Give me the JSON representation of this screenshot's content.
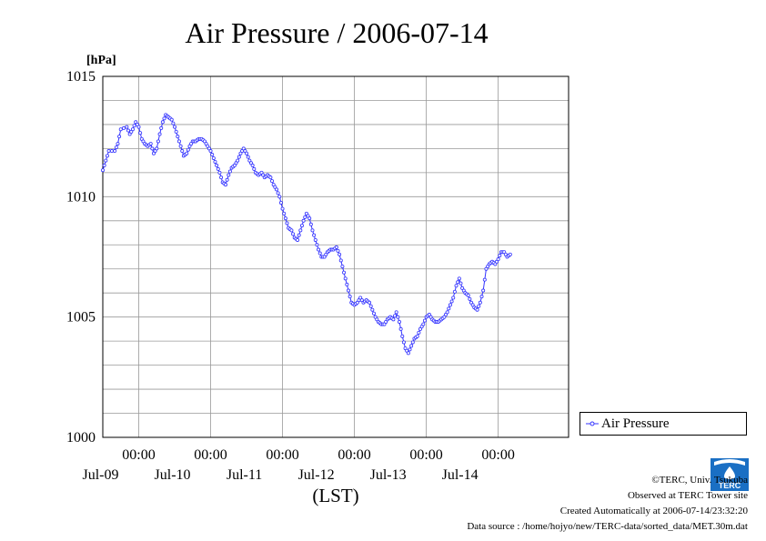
{
  "chart_data": {
    "type": "line",
    "title": "Air Pressure / 2006-07-14",
    "ylabel": "[hPa]",
    "xlabel": "(LST)",
    "ylim": [
      1000,
      1015
    ],
    "y_ticks": [
      "1000",
      "1005",
      "1010",
      "1015"
    ],
    "xlim": [
      "2006-07-08T12:00",
      "2006-07-14T23:30"
    ],
    "x_ticks": [
      {
        "time": "2006-07-09T00:00",
        "label_time": "00:00",
        "label_date": "Jul-09"
      },
      {
        "time": "2006-07-10T00:00",
        "label_time": "00:00",
        "label_date": "Jul-10"
      },
      {
        "time": "2006-07-11T00:00",
        "label_time": "00:00",
        "label_date": "Jul-11"
      },
      {
        "time": "2006-07-12T00:00",
        "label_time": "00:00",
        "label_date": "Jul-12"
      },
      {
        "time": "2006-07-13T00:00",
        "label_time": "00:00",
        "label_date": "Jul-13"
      },
      {
        "time": "2006-07-14T00:00",
        "label_time": "00:00",
        "label_date": "Jul-14"
      }
    ],
    "grid": true,
    "legend_placement": "bottom-right outside",
    "series": [
      {
        "name": "Air Pressure",
        "color": "#3333ff",
        "points": [
          [
            "2006-07-08T12:00",
            1011.1
          ],
          [
            "2006-07-08T13:00",
            1011.5
          ],
          [
            "2006-07-08T14:00",
            1011.9
          ],
          [
            "2006-07-08T16:00",
            1011.9
          ],
          [
            "2006-07-08T17:00",
            1012.2
          ],
          [
            "2006-07-08T18:00",
            1012.8
          ],
          [
            "2006-07-08T20:00",
            1012.9
          ],
          [
            "2006-07-08T21:00",
            1012.6
          ],
          [
            "2006-07-08T22:00",
            1012.8
          ],
          [
            "2006-07-08T23:00",
            1013.1
          ],
          [
            "2006-07-09T00:00",
            1012.9
          ],
          [
            "2006-07-09T01:00",
            1012.4
          ],
          [
            "2006-07-09T02:00",
            1012.2
          ],
          [
            "2006-07-09T03:00",
            1012.1
          ],
          [
            "2006-07-09T04:00",
            1012.2
          ],
          [
            "2006-07-09T05:00",
            1011.8
          ],
          [
            "2006-07-09T06:00",
            1012.0
          ],
          [
            "2006-07-09T07:00",
            1012.6
          ],
          [
            "2006-07-09T08:00",
            1013.1
          ],
          [
            "2006-07-09T09:00",
            1013.4
          ],
          [
            "2006-07-09T10:00",
            1013.3
          ],
          [
            "2006-07-09T11:00",
            1013.2
          ],
          [
            "2006-07-09T12:00",
            1012.9
          ],
          [
            "2006-07-09T13:00",
            1012.5
          ],
          [
            "2006-07-09T14:00",
            1012.1
          ],
          [
            "2006-07-09T15:00",
            1011.7
          ],
          [
            "2006-07-09T16:00",
            1011.8
          ],
          [
            "2006-07-09T17:00",
            1012.1
          ],
          [
            "2006-07-09T18:00",
            1012.3
          ],
          [
            "2006-07-09T19:00",
            1012.3
          ],
          [
            "2006-07-09T20:00",
            1012.4
          ],
          [
            "2006-07-09T21:00",
            1012.4
          ],
          [
            "2006-07-09T22:00",
            1012.3
          ],
          [
            "2006-07-09T23:00",
            1012.1
          ],
          [
            "2006-07-10T00:00",
            1011.9
          ],
          [
            "2006-07-10T01:00",
            1011.6
          ],
          [
            "2006-07-10T02:00",
            1011.3
          ],
          [
            "2006-07-10T03:00",
            1011.0
          ],
          [
            "2006-07-10T04:00",
            1010.6
          ],
          [
            "2006-07-10T05:00",
            1010.5
          ],
          [
            "2006-07-10T06:00",
            1010.9
          ],
          [
            "2006-07-10T07:00",
            1011.2
          ],
          [
            "2006-07-10T08:00",
            1011.3
          ],
          [
            "2006-07-10T09:00",
            1011.5
          ],
          [
            "2006-07-10T10:00",
            1011.8
          ],
          [
            "2006-07-10T11:00",
            1012.0
          ],
          [
            "2006-07-10T12:00",
            1011.8
          ],
          [
            "2006-07-10T13:00",
            1011.5
          ],
          [
            "2006-07-10T14:00",
            1011.3
          ],
          [
            "2006-07-10T15:00",
            1011.0
          ],
          [
            "2006-07-10T16:00",
            1010.9
          ],
          [
            "2006-07-10T17:00",
            1011.0
          ],
          [
            "2006-07-10T18:00",
            1010.8
          ],
          [
            "2006-07-10T19:00",
            1010.9
          ],
          [
            "2006-07-10T20:00",
            1010.8
          ],
          [
            "2006-07-10T21:00",
            1010.5
          ],
          [
            "2006-07-10T22:00",
            1010.3
          ],
          [
            "2006-07-10T23:00",
            1010.0
          ],
          [
            "2006-07-11T00:00",
            1009.5
          ],
          [
            "2006-07-11T01:00",
            1009.1
          ],
          [
            "2006-07-11T02:00",
            1008.7
          ],
          [
            "2006-07-11T03:00",
            1008.6
          ],
          [
            "2006-07-11T04:00",
            1008.3
          ],
          [
            "2006-07-11T05:00",
            1008.2
          ],
          [
            "2006-07-11T06:00",
            1008.6
          ],
          [
            "2006-07-11T07:00",
            1009.0
          ],
          [
            "2006-07-11T08:00",
            1009.3
          ],
          [
            "2006-07-11T09:00",
            1009.1
          ],
          [
            "2006-07-11T10:00",
            1008.6
          ],
          [
            "2006-07-11T11:00",
            1008.2
          ],
          [
            "2006-07-11T12:00",
            1007.8
          ],
          [
            "2006-07-11T13:00",
            1007.5
          ],
          [
            "2006-07-11T14:00",
            1007.5
          ],
          [
            "2006-07-11T15:00",
            1007.7
          ],
          [
            "2006-07-11T16:00",
            1007.8
          ],
          [
            "2006-07-11T17:00",
            1007.8
          ],
          [
            "2006-07-11T18:00",
            1007.9
          ],
          [
            "2006-07-11T19:00",
            1007.6
          ],
          [
            "2006-07-11T20:00",
            1007.1
          ],
          [
            "2006-07-11T21:00",
            1006.6
          ],
          [
            "2006-07-11T22:00",
            1006.1
          ],
          [
            "2006-07-11T23:00",
            1005.6
          ],
          [
            "2006-07-12T00:00",
            1005.5
          ],
          [
            "2006-07-12T01:00",
            1005.6
          ],
          [
            "2006-07-12T02:00",
            1005.8
          ],
          [
            "2006-07-12T03:00",
            1005.6
          ],
          [
            "2006-07-12T04:00",
            1005.7
          ],
          [
            "2006-07-12T05:00",
            1005.6
          ],
          [
            "2006-07-12T06:00",
            1005.3
          ],
          [
            "2006-07-12T07:00",
            1005.0
          ],
          [
            "2006-07-12T08:00",
            1004.8
          ],
          [
            "2006-07-12T09:00",
            1004.7
          ],
          [
            "2006-07-12T10:00",
            1004.7
          ],
          [
            "2006-07-12T11:00",
            1004.9
          ],
          [
            "2006-07-12T12:00",
            1005.0
          ],
          [
            "2006-07-12T13:00",
            1004.9
          ],
          [
            "2006-07-12T14:00",
            1005.2
          ],
          [
            "2006-07-12T15:00",
            1004.8
          ],
          [
            "2006-07-12T16:00",
            1004.2
          ],
          [
            "2006-07-12T17:00",
            1003.7
          ],
          [
            "2006-07-12T18:00",
            1003.5
          ],
          [
            "2006-07-12T19:00",
            1003.8
          ],
          [
            "2006-07-12T20:00",
            1004.1
          ],
          [
            "2006-07-12T21:00",
            1004.2
          ],
          [
            "2006-07-12T22:00",
            1004.5
          ],
          [
            "2006-07-12T23:00",
            1004.7
          ],
          [
            "2006-07-13T00:00",
            1005.0
          ],
          [
            "2006-07-13T01:00",
            1005.1
          ],
          [
            "2006-07-13T02:00",
            1004.9
          ],
          [
            "2006-07-13T03:00",
            1004.8
          ],
          [
            "2006-07-13T04:00",
            1004.8
          ],
          [
            "2006-07-13T05:00",
            1004.9
          ],
          [
            "2006-07-13T06:00",
            1005.0
          ],
          [
            "2006-07-13T07:00",
            1005.2
          ],
          [
            "2006-07-13T08:00",
            1005.5
          ],
          [
            "2006-07-13T09:00",
            1005.8
          ],
          [
            "2006-07-13T10:00",
            1006.3
          ],
          [
            "2006-07-13T11:00",
            1006.6
          ],
          [
            "2006-07-13T12:00",
            1006.2
          ],
          [
            "2006-07-13T13:00",
            1006.0
          ],
          [
            "2006-07-13T14:00",
            1005.9
          ],
          [
            "2006-07-13T15:00",
            1005.6
          ],
          [
            "2006-07-13T16:00",
            1005.4
          ],
          [
            "2006-07-13T17:00",
            1005.3
          ],
          [
            "2006-07-13T18:00",
            1005.6
          ],
          [
            "2006-07-13T19:00",
            1006.1
          ],
          [
            "2006-07-13T20:00",
            1007.0
          ],
          [
            "2006-07-13T21:00",
            1007.2
          ],
          [
            "2006-07-13T22:00",
            1007.3
          ],
          [
            "2006-07-13T23:00",
            1007.2
          ],
          [
            "2006-07-14T00:00",
            1007.4
          ],
          [
            "2006-07-14T01:00",
            1007.7
          ],
          [
            "2006-07-14T02:00",
            1007.7
          ],
          [
            "2006-07-14T03:00",
            1007.5
          ],
          [
            "2006-07-14T04:00",
            1007.6
          ]
        ]
      }
    ]
  },
  "credits": {
    "copyright": "©TERC, Univ. Tsukuba",
    "observed": "Observed at TERC Tower site",
    "created": "Created Automatically at 2006-07-14/23:32:20",
    "source": "Data source : /home/hojyo/new/TERC-data/sorted_data/MET.30m.dat"
  },
  "logo": {
    "icon": "terc-logo-icon",
    "text": "TERC",
    "color": "#1a6fc4"
  }
}
